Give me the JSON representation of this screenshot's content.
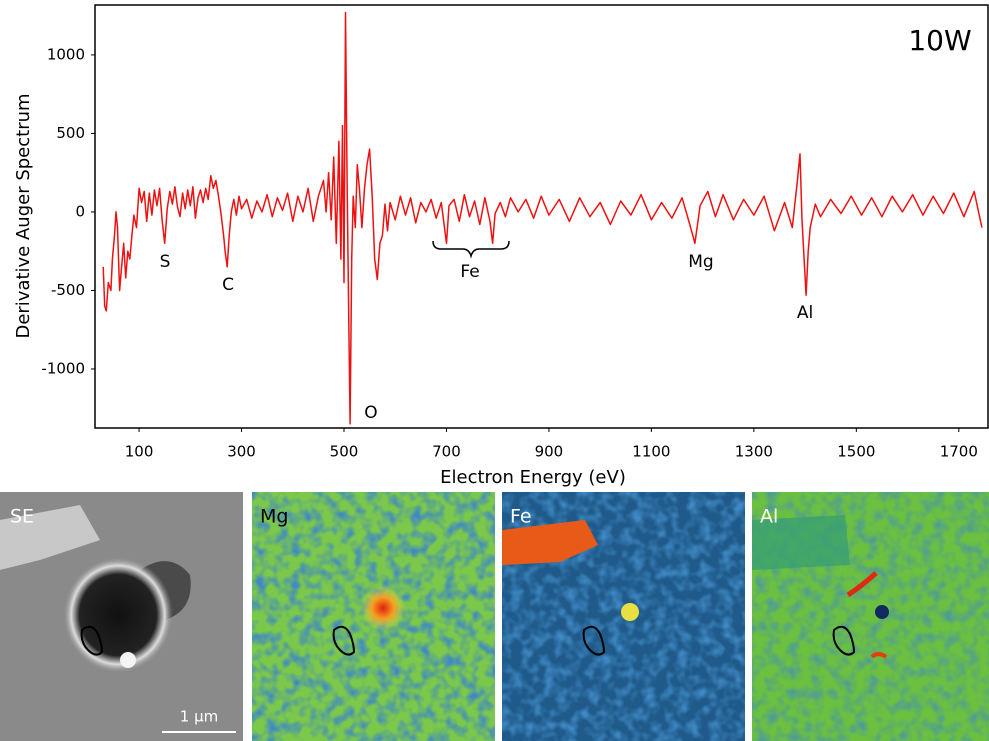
{
  "chart_data": {
    "type": "line",
    "x_label": "Electron Energy (eV)",
    "y_label": "Derivative Auger Spectrum",
    "annotations": [
      "10W",
      "S",
      "C",
      "O",
      "Fe",
      "Mg",
      "Al"
    ],
    "xlim": [
      14,
      1757
    ],
    "xticks": [
      100,
      300,
      500,
      700,
      900,
      1100,
      1300,
      1500,
      1700
    ],
    "ylim": [
      -1376,
      1318
    ],
    "yticks": [
      -1000,
      -500,
      0,
      500,
      1000
    ],
    "grid": false,
    "x": [
      30,
      33,
      36,
      40,
      45,
      48,
      52,
      55,
      58,
      62,
      66,
      70,
      74,
      78,
      82,
      86,
      90,
      95,
      100,
      105,
      110,
      115,
      120,
      125,
      130,
      135,
      140,
      145,
      150,
      155,
      160,
      165,
      170,
      175,
      180,
      185,
      190,
      195,
      200,
      205,
      210,
      215,
      220,
      225,
      230,
      235,
      240,
      245,
      250,
      255,
      260,
      265,
      268,
      272,
      276,
      280,
      285,
      290,
      295,
      300,
      310,
      320,
      330,
      340,
      350,
      360,
      370,
      380,
      390,
      400,
      410,
      420,
      430,
      440,
      450,
      460,
      465,
      470,
      475,
      480,
      485,
      490,
      494,
      497,
      500,
      503,
      506,
      509,
      512,
      515,
      518,
      522,
      526,
      530,
      535,
      540,
      545,
      550,
      555,
      560,
      565,
      570,
      575,
      580,
      585,
      590,
      600,
      610,
      620,
      630,
      640,
      650,
      660,
      670,
      680,
      690,
      700,
      705,
      715,
      725,
      735,
      745,
      755,
      765,
      775,
      785,
      790,
      795,
      805,
      815,
      825,
      840,
      855,
      870,
      885,
      900,
      920,
      940,
      960,
      980,
      1000,
      1020,
      1040,
      1060,
      1080,
      1100,
      1120,
      1140,
      1160,
      1175,
      1185,
      1195,
      1210,
      1225,
      1240,
      1260,
      1280,
      1300,
      1320,
      1340,
      1360,
      1375,
      1385,
      1390,
      1394,
      1398,
      1402,
      1406,
      1410,
      1420,
      1430,
      1450,
      1470,
      1490,
      1510,
      1530,
      1550,
      1570,
      1590,
      1610,
      1630,
      1650,
      1670,
      1690,
      1710,
      1730,
      1745
    ],
    "series": [
      {
        "name": "10W",
        "color": "#ee1111",
        "values": [
          -350,
          -600,
          -630,
          -450,
          -500,
          -300,
          -150,
          0,
          -100,
          -500,
          -350,
          -200,
          -420,
          -250,
          -300,
          -150,
          -20,
          -100,
          150,
          60,
          130,
          -60,
          120,
          -20,
          140,
          40,
          150,
          -50,
          -200,
          20,
          130,
          50,
          160,
          30,
          -30,
          120,
          20,
          140,
          40,
          160,
          -40,
          90,
          140,
          60,
          150,
          80,
          230,
          150,
          200,
          100,
          -10,
          -150,
          -250,
          -350,
          -150,
          0,
          80,
          -20,
          100,
          20,
          80,
          -40,
          70,
          0,
          110,
          -30,
          90,
          10,
          120,
          -60,
          100,
          0,
          150,
          -60,
          100,
          200,
          0,
          250,
          -50,
          350,
          -200,
          450,
          -300,
          550,
          -450,
          1270,
          200,
          -600,
          -1350,
          -300,
          100,
          -100,
          300,
          150,
          -100,
          150,
          300,
          400,
          100,
          -300,
          -430,
          -200,
          -150,
          50,
          -120,
          60,
          -50,
          100,
          -20,
          90,
          -70,
          60,
          0,
          80,
          -40,
          60,
          -200,
          40,
          80,
          -60,
          110,
          -30,
          70,
          -80,
          90,
          -60,
          -200,
          -10,
          60,
          -30,
          90,
          0,
          80,
          -40,
          100,
          -20,
          80,
          -60,
          90,
          -30,
          60,
          -80,
          70,
          -20,
          110,
          -50,
          60,
          -40,
          90,
          -80,
          -200,
          40,
          130,
          -30,
          110,
          -50,
          80,
          -20,
          100,
          -120,
          60,
          -100,
          200,
          370,
          -50,
          -300,
          -530,
          -250,
          -100,
          50,
          -30,
          80,
          -10,
          100,
          -20,
          90,
          -30,
          100,
          0,
          110,
          -20,
          100,
          -10,
          120,
          -30,
          130,
          -100
        ]
      }
    ]
  },
  "panels": [
    {
      "label": "SE"
    },
    {
      "label": "Mg"
    },
    {
      "label": "Fe"
    },
    {
      "label": "Al"
    }
  ],
  "scale_bar": "1 µm"
}
